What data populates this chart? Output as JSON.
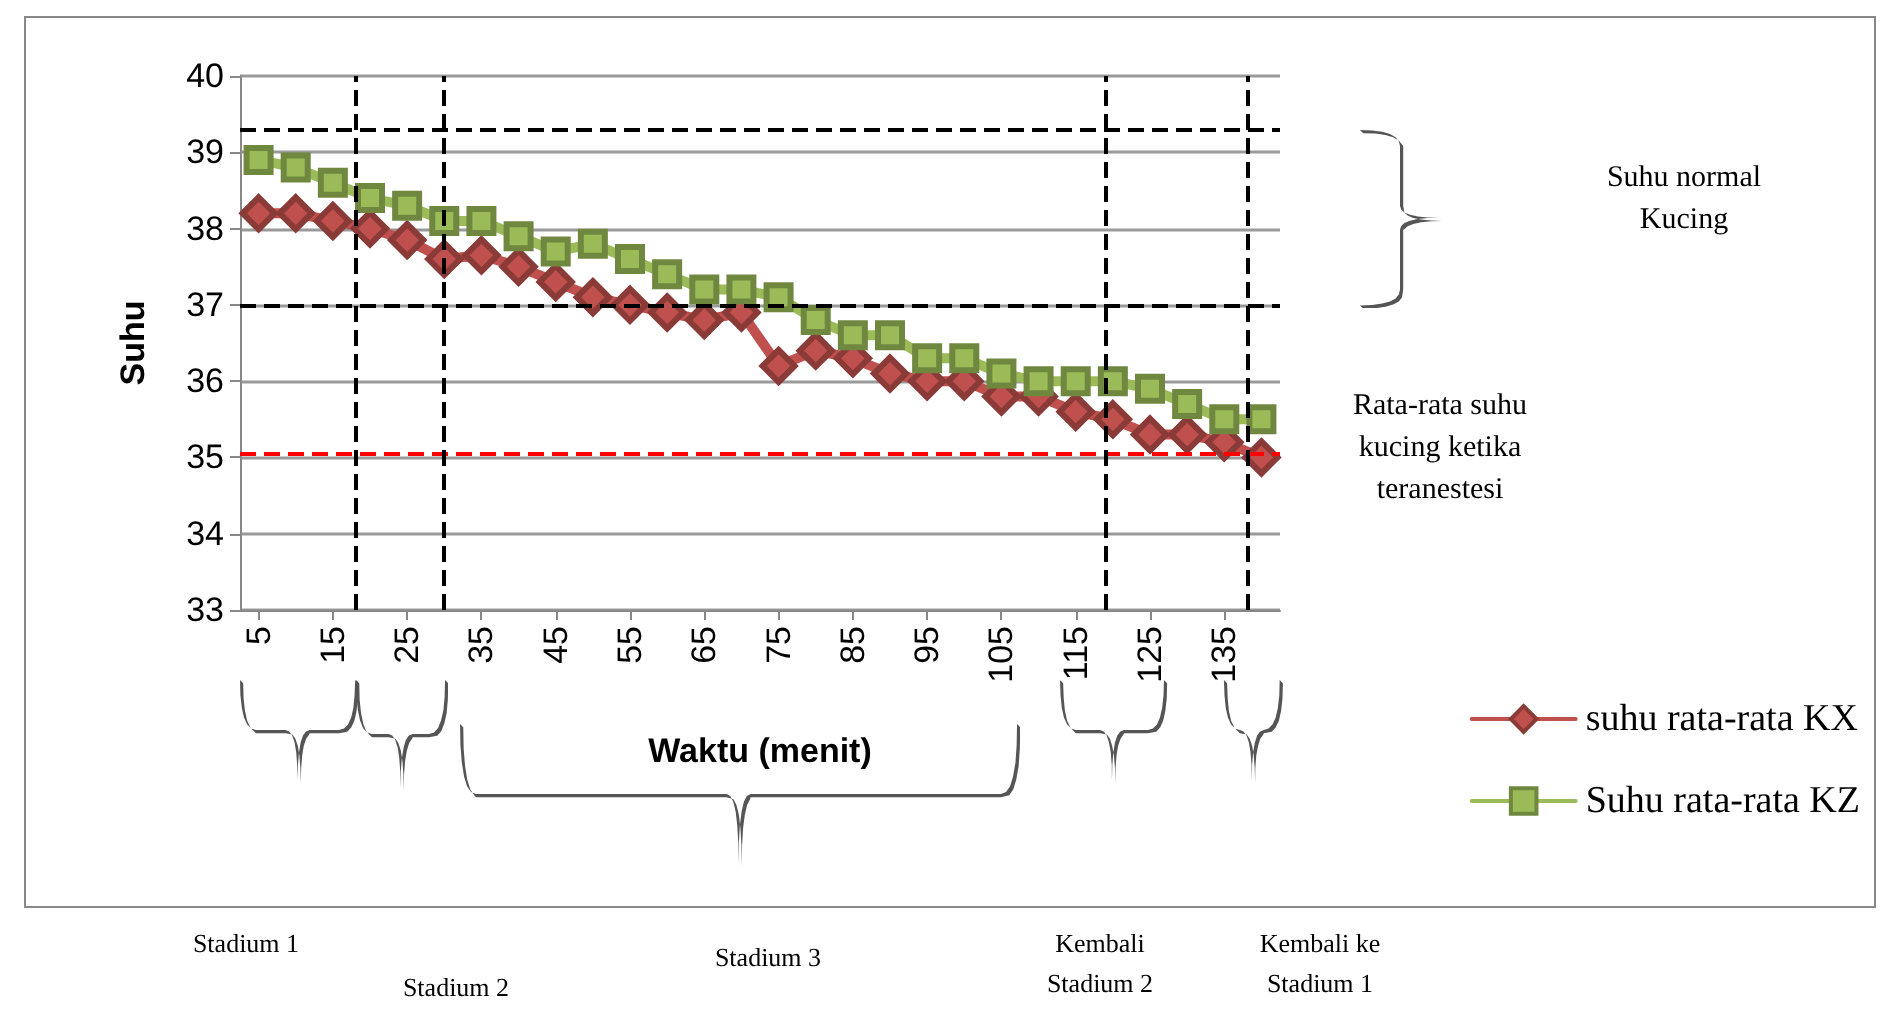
{
  "chart_data": {
    "type": "line",
    "xlabel": "Waktu (menit)",
    "ylabel": "Suhu",
    "x": [
      5,
      10,
      15,
      20,
      25,
      30,
      35,
      40,
      45,
      50,
      55,
      60,
      65,
      70,
      75,
      80,
      85,
      90,
      95,
      100,
      105,
      110,
      115,
      120,
      125,
      130,
      135,
      140
    ],
    "series": [
      {
        "name": "suhu rata-rata KX",
        "color": "#c0504d",
        "marker": "diamond",
        "values": [
          38.2,
          38.2,
          38.1,
          38.0,
          37.85,
          37.6,
          37.65,
          37.5,
          37.3,
          37.1,
          37.0,
          36.9,
          36.8,
          36.9,
          36.2,
          36.4,
          36.3,
          36.1,
          36.0,
          36.0,
          35.8,
          35.8,
          35.6,
          35.5,
          35.3,
          35.3,
          35.2,
          35.0
        ]
      },
      {
        "name": "Suhu rata-rata KZ",
        "color": "#9bbb59",
        "marker": "square",
        "values": [
          38.9,
          38.8,
          38.6,
          38.4,
          38.3,
          38.1,
          38.1,
          37.9,
          37.7,
          37.8,
          37.6,
          37.4,
          37.2,
          37.2,
          37.1,
          36.8,
          36.6,
          36.6,
          36.3,
          36.3,
          36.1,
          36.0,
          36.0,
          36.0,
          35.9,
          35.7,
          35.5,
          35.5
        ]
      }
    ],
    "xlim": [
      2.5,
      142.5
    ],
    "xticks": [
      5,
      15,
      25,
      35,
      45,
      55,
      65,
      75,
      85,
      95,
      105,
      115,
      125,
      135
    ],
    "ylim": [
      33,
      40
    ],
    "yticks": [
      33,
      34,
      35,
      36,
      37,
      38,
      39,
      40
    ],
    "grid": "y",
    "legend": "bottom right",
    "line_style": "solid",
    "ref_lines": [
      {
        "axis": "y",
        "value": 39.3,
        "color": "#000000",
        "line_style": "dashed"
      },
      {
        "axis": "y",
        "value": 37,
        "color": "#000000",
        "line_style": "dashed"
      },
      {
        "axis": "y",
        "value": 35.05,
        "color": "#ff0000",
        "line_style": "dashed",
        "label": "Rata-rata suhu kucing ketika teranestesi"
      },
      {
        "axis": "x",
        "value": 18,
        "color": "#000000",
        "line_style": "dashed"
      },
      {
        "axis": "x",
        "value": 30,
        "color": "#000000",
        "line_style": "dashed"
      },
      {
        "axis": "x",
        "value": 119,
        "color": "#000000",
        "line_style": "dashed"
      },
      {
        "axis": "x",
        "value": 138,
        "color": "#000000",
        "line_style": "dashed"
      }
    ],
    "annotations": [
      "Suhu normal Kucing",
      "Stadium 1",
      "Stadium 2",
      "Stadium 3",
      "Kembali Stadium 2",
      "Kembali ke Stadium 1"
    ]
  }
}
